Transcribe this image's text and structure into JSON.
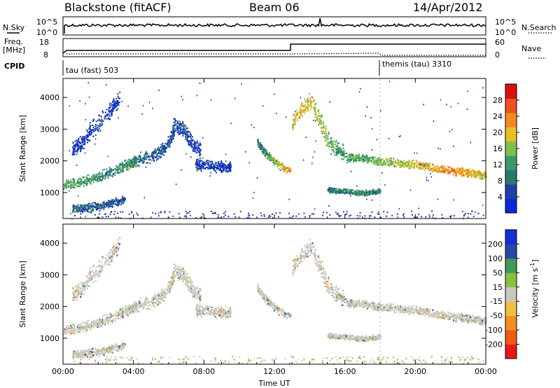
{
  "header": {
    "station": "Blackstone (fitACF)",
    "beam": "Beam 06",
    "date": "14/Apr/2012"
  },
  "top_panels": {
    "nsky_label": "N.Sky",
    "nsky_ticks": [
      "10^5",
      "10^0"
    ],
    "nsearch_label": "N.Search",
    "freq_label": "Freq.",
    "freq_unit": "[MHz]",
    "freq_ticks": [
      "18",
      "8"
    ],
    "nave_label": "Nave",
    "nave_ticks": [
      "60",
      "0"
    ],
    "cpid_label": "CPID",
    "cpid_entries": [
      {
        "label": "tau (fast) 503",
        "start_hour": 0
      },
      {
        "label": "themis (tau) 3310",
        "start_hour": 18
      }
    ]
  },
  "colors": {
    "power": [
      "#0a2ad6",
      "#223ea8",
      "#2a7a6a",
      "#3a9a6a",
      "#7ec04a",
      "#e8c020",
      "#f08a20",
      "#f05020",
      "#d81010"
    ],
    "velocity": [
      "#e81818",
      "#f05a10",
      "#f09020",
      "#f0c040",
      "#c8c8c0",
      "#88c040",
      "#3c9a5a",
      "#2848a8",
      "#1030d8"
    ],
    "ground": "#7a7a7a"
  },
  "chart_data": [
    {
      "type": "heatmap",
      "name": "power",
      "xlabel": "Time UT",
      "ylabel": "Slant Range [km]",
      "xlim": [
        0,
        24
      ],
      "ylim": [
        180,
        4600
      ],
      "xticks": [
        "00:00",
        "04:00",
        "08:00",
        "12:00",
        "16:00",
        "20:00",
        "00:00"
      ],
      "yticks": [
        1000,
        2000,
        3000,
        4000
      ],
      "colorbar": {
        "label": "Power [dB]",
        "ticks": [
          "4",
          "8",
          "12",
          "16",
          "20",
          "24",
          "28"
        ],
        "range": [
          0,
          30
        ]
      },
      "scatter_regions": [
        {
          "x": [
            0.0,
            1.0,
            2.0,
            3.0,
            3.7,
            4.2
          ],
          "y": [
            1250,
            1350,
            1500,
            1750,
            1900,
            2050
          ],
          "w": 200,
          "val": [
            13,
            12,
            10,
            9,
            11,
            10
          ]
        },
        {
          "x": [
            4.2,
            5.0,
            5.5,
            6.0,
            6.3
          ],
          "y": [
            2050,
            2150,
            2300,
            2600,
            3000
          ],
          "w": 250,
          "val": [
            8,
            7,
            6,
            6,
            5
          ]
        },
        {
          "x": [
            6.2,
            6.8,
            7.3,
            7.8
          ],
          "y": [
            3200,
            3000,
            2600,
            2300
          ],
          "w": 300,
          "val": [
            5,
            5,
            4,
            4
          ]
        },
        {
          "x": [
            7.5,
            8.5,
            9.5
          ],
          "y": [
            1900,
            1850,
            1800
          ],
          "w": 200,
          "val": [
            4,
            4,
            3
          ]
        },
        {
          "x": [
            11.0,
            11.4,
            11.8,
            12.2,
            12.9
          ],
          "y": [
            2600,
            2300,
            2100,
            1900,
            1700
          ],
          "w": 150,
          "val": [
            8,
            10,
            13,
            17,
            22
          ]
        },
        {
          "x": [
            13.0,
            13.5,
            14.0,
            14.5,
            15.0,
            15.5,
            16.0
          ],
          "y": [
            3200,
            3600,
            3900,
            3400,
            2700,
            2400,
            2250
          ],
          "w": 300,
          "val": [
            16,
            20,
            18,
            16,
            14,
            12,
            11
          ]
        },
        {
          "x": [
            16.0,
            17.0,
            18.0,
            19.0,
            20.0,
            21.0,
            22.0,
            23.0,
            24.0
          ],
          "y": [
            2150,
            2100,
            2000,
            1950,
            1900,
            1800,
            1700,
            1650,
            1550
          ],
          "w": 150,
          "val": [
            12,
            13,
            14,
            16,
            18,
            20,
            21,
            20,
            18
          ]
        },
        {
          "x": [
            15.0,
            16.0,
            17.0,
            18.0
          ],
          "y": [
            1100,
            1050,
            1000,
            1050
          ],
          "w": 100,
          "val": [
            8,
            9,
            10,
            9
          ]
        },
        {
          "x": [
            0.5,
            1.5,
            2.5,
            3.5
          ],
          "y": [
            500,
            550,
            650,
            800
          ],
          "w": 150,
          "val": [
            7,
            7,
            6,
            5
          ]
        },
        {
          "x": [
            0.5,
            1.0,
            1.5,
            2.5,
            3.2
          ],
          "y": [
            2350,
            2550,
            2950,
            3500,
            4000
          ],
          "w": 300,
          "val": [
            4,
            4,
            4,
            4,
            4
          ]
        }
      ]
    },
    {
      "type": "heatmap",
      "name": "velocity",
      "xlabel": "Time UT",
      "ylabel": "Slant Range [km]",
      "xlim": [
        0,
        24
      ],
      "ylim": [
        180,
        4600
      ],
      "xticks": [
        "00:00",
        "04:00",
        "08:00",
        "12:00",
        "16:00",
        "20:00",
        "00:00"
      ],
      "yticks": [
        1000,
        2000,
        3000,
        4000
      ],
      "colorbar": {
        "label": "Velocity [m s^-1]",
        "ticks": [
          "200",
          "100",
          "50",
          "15",
          "-15",
          "-50",
          "-100",
          "-200"
        ],
        "range": [
          -250,
          250
        ]
      }
    }
  ]
}
